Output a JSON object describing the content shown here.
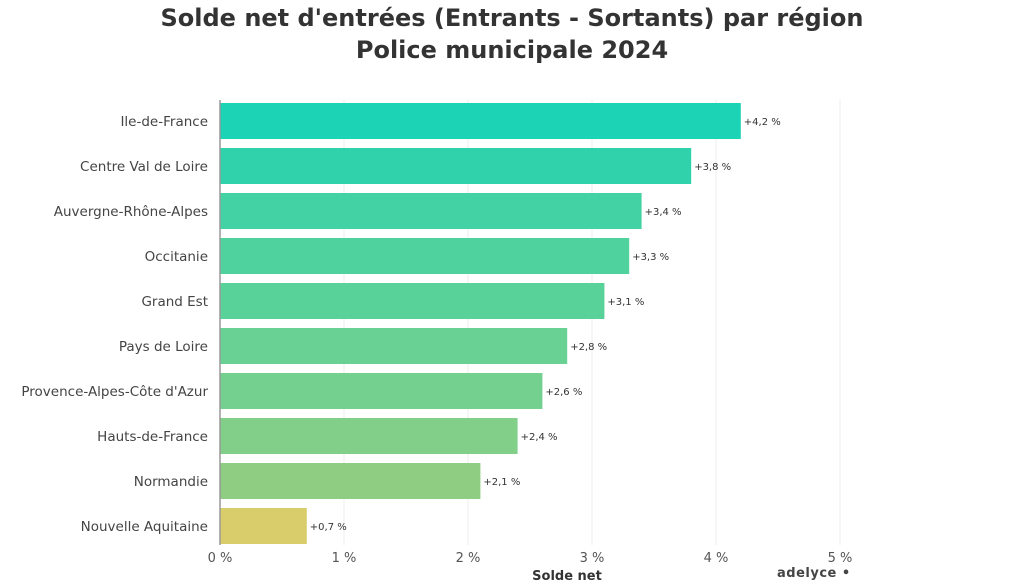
{
  "chart_data": {
    "type": "bar",
    "orientation": "horizontal",
    "title": "Solde net d'entrées (Entrants - Sortants) par région",
    "subtitle": "Police municipale 2024",
    "xlabel": "Solde net",
    "ylabel": "",
    "xlim": [
      0,
      5
    ],
    "xticks": [
      "0 %",
      "1 %",
      "2 %",
      "3 %",
      "4 %",
      "5 %"
    ],
    "grid": true,
    "categories": [
      "Ile-de-France",
      "Centre Val de Loire",
      "Auvergne-Rhône-Alpes",
      "Occitanie",
      "Grand Est",
      "Pays de Loire",
      "Provence-Alpes-Côte d'Azur",
      "Hauts-de-France",
      "Normandie",
      "Nouvelle Aquitaine"
    ],
    "values": [
      4.2,
      3.8,
      3.4,
      3.3,
      3.1,
      2.8,
      2.6,
      2.4,
      2.1,
      0.7
    ],
    "labels": [
      "+4,2 %",
      "+3,8 %",
      "+3,4 %",
      "+3,3 %",
      "+3,1 %",
      "+2,8 %",
      "+2,6 %",
      "+2,4 %",
      "+2,1 %",
      "+0,7 %"
    ],
    "colors": [
      "#1dd3b6",
      "#30d2ac",
      "#43d2a4",
      "#4fd29e",
      "#58d298",
      "#68d193",
      "#74d08f",
      "#81cf89",
      "#8fce82",
      "#d8cd6a"
    ]
  },
  "branding": "adelyce •"
}
